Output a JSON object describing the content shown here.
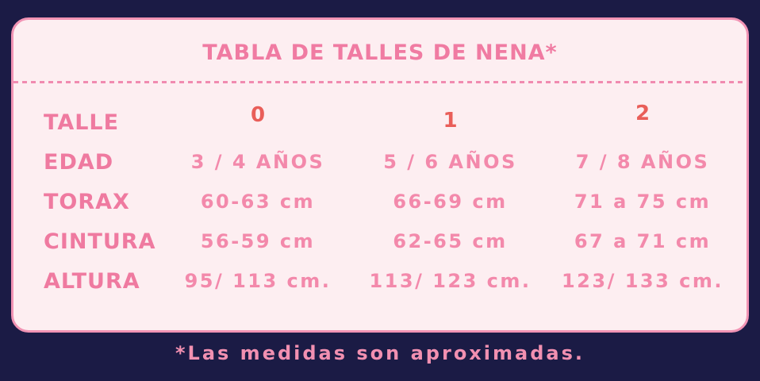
{
  "chart_data": {
    "type": "table",
    "title": "TABLA DE TALLES DE NENA*",
    "columns": [
      "TALLE",
      "0",
      "1",
      "2"
    ],
    "rows": [
      [
        "EDAD",
        "3 / 4 AÑOS",
        "5 / 6 AÑOS",
        "7 / 8 AÑOS"
      ],
      [
        "TORAX",
        "60-63 cm",
        "66-69 cm",
        "71 a 75 cm"
      ],
      [
        "CINTURA",
        "56-59 cm",
        "62-65 cm",
        "67 a 71 cm"
      ],
      [
        "ALTURA",
        "95/ 113 cm.",
        "113/ 123 cm.",
        "123/ 133 cm."
      ]
    ],
    "footnote": "*Las medidas son aproximadas."
  },
  "colors": {
    "background_navy": "#1b1b45",
    "card_background": "#fdeef1",
    "card_border": "#f193b4",
    "title_pink": "#f07ba2",
    "label_pink": "#ef7aa0",
    "value_pink": "#f389ab",
    "size_number_red": "#e95e59",
    "footnote_pink": "#f290b1"
  }
}
